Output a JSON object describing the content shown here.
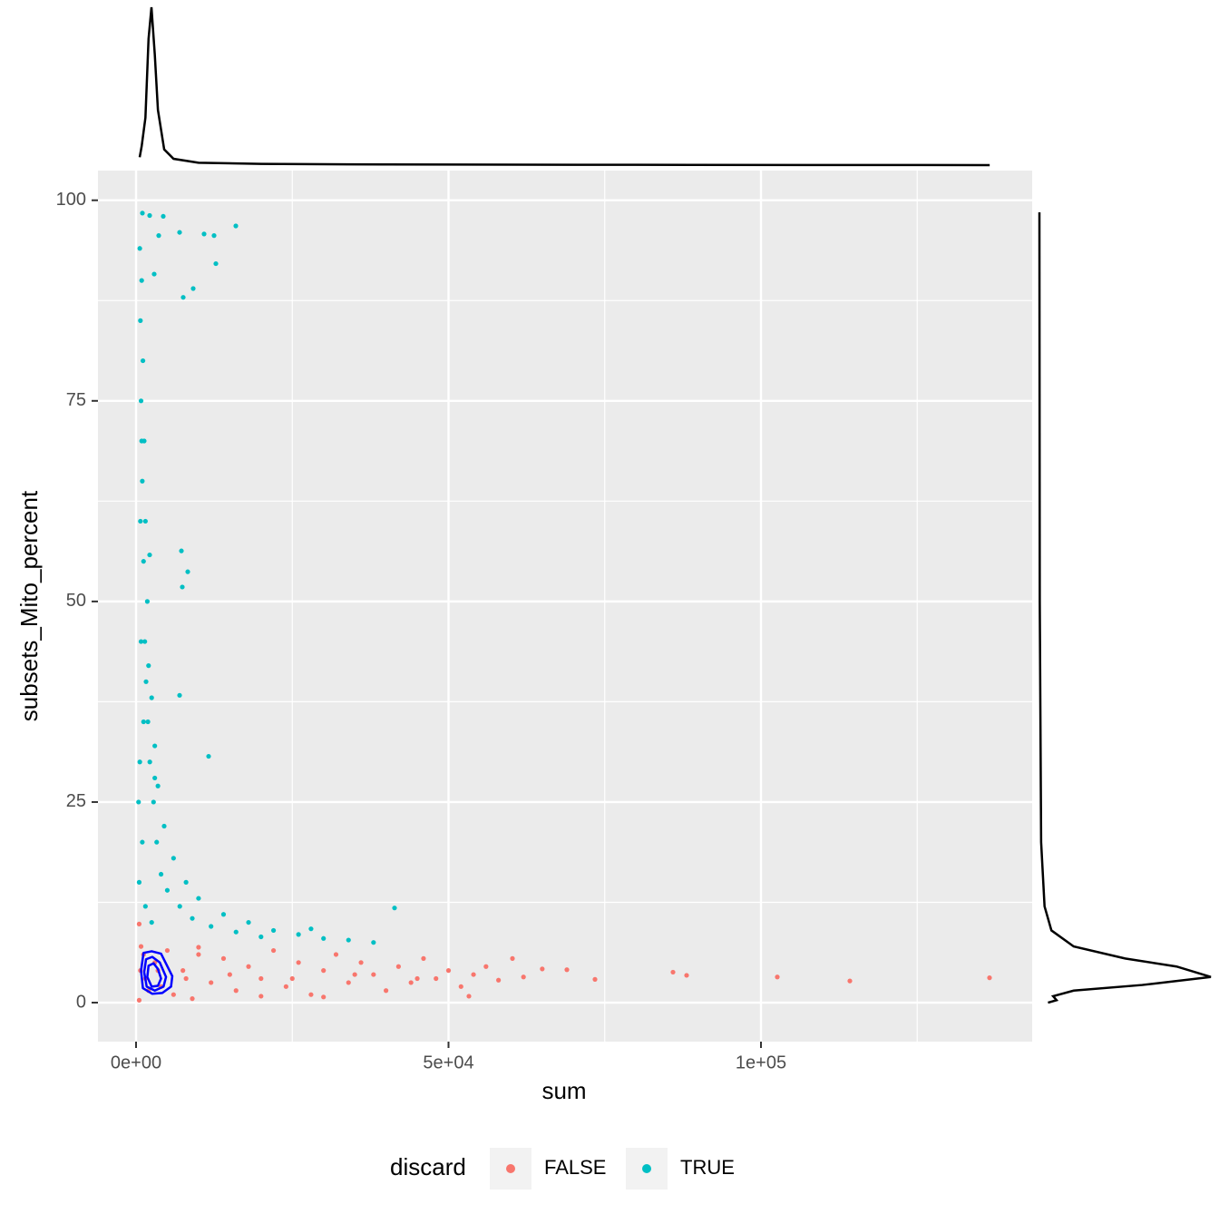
{
  "chart_data": {
    "type": "scatter",
    "x_label": "sum",
    "y_label": "subsets_Mito_percent",
    "legend_title": "discard",
    "legend_position": "bottom",
    "xlim": [
      -6096,
      143396
    ],
    "ylim": [
      -4.86,
      103.7
    ],
    "xticks": [
      {
        "value": 0,
        "label": "0e+00"
      },
      {
        "value": 50000,
        "label": "5e+04"
      },
      {
        "value": 100000,
        "label": "1e+05"
      }
    ],
    "x_minor_ticks": [
      25000,
      75000,
      125000
    ],
    "yticks": [
      0,
      25,
      50,
      75,
      100
    ],
    "y_minor_ticks": [
      12.5,
      37.5,
      62.5,
      87.5
    ],
    "grid": true,
    "series": [
      {
        "name": "FALSE",
        "color": "#F8766D",
        "x": [
          500,
          800,
          1200,
          2000,
          3000,
          4000,
          5000,
          6000,
          7500,
          9000,
          10000,
          12000,
          14000,
          16000,
          18000,
          20000,
          22000,
          24000,
          26000,
          28000,
          30000,
          32000,
          34000,
          36000,
          38000,
          40000,
          42000,
          44000,
          46000,
          48000,
          50000,
          52000,
          54000,
          56000,
          58000,
          60232,
          62000,
          65000,
          68940,
          73440,
          85922,
          88099,
          102612,
          114224,
          136575,
          53266,
          1500,
          3500,
          8000,
          15000,
          25000,
          35000,
          45000,
          20000,
          30000,
          10000,
          500,
          700
        ],
        "y": [
          9.8,
          7,
          6,
          1.5,
          5,
          2,
          6.5,
          1,
          4,
          0.5,
          6,
          2.5,
          5.5,
          1.5,
          4.5,
          3,
          6.5,
          2,
          5,
          1,
          4,
          6,
          2.5,
          5,
          3.5,
          1.5,
          4.5,
          2.5,
          5.5,
          3,
          4,
          2,
          3.5,
          4.5,
          2.8,
          5.5,
          3.2,
          4.2,
          4.1,
          2.9,
          3.8,
          3.4,
          3.2,
          2.7,
          3.1,
          0.8,
          3,
          4,
          3,
          3.5,
          3,
          3.5,
          3,
          0.8,
          0.7,
          6.9,
          0.3,
          4
        ]
      },
      {
        "name": "TRUE",
        "color": "#00BFC4",
        "x": [
          1016,
          2177,
          4354,
          3628,
          6967,
          10885,
          12482,
          15965,
          12773,
          2903,
          9144,
          7547,
          7257,
          8273,
          7402,
          6967,
          11611,
          41364,
          2177,
          600,
          900,
          700,
          1100,
          800,
          1300,
          1000,
          1500,
          1200,
          1800,
          1400,
          2000,
          1600,
          2500,
          1900,
          3000,
          2200,
          3500,
          2800,
          4500,
          3300,
          6000,
          4000,
          8000,
          5000,
          10000,
          7000,
          14000,
          9000,
          18000,
          12000,
          22000,
          16000,
          26000,
          20000,
          30000,
          34000,
          38000,
          28000,
          3000,
          1000,
          500,
          1500,
          2500,
          600,
          800,
          700,
          900,
          1200,
          400
        ],
        "y": [
          98.4,
          98.1,
          98,
          95.6,
          96,
          95.8,
          95.6,
          96.8,
          92.1,
          90.8,
          89,
          87.9,
          56.3,
          53.7,
          51.8,
          38.3,
          30.7,
          11.8,
          55.8,
          94,
          90,
          85,
          80,
          75,
          70,
          65,
          60,
          55,
          50,
          45,
          42,
          40,
          38,
          35,
          32,
          30,
          27,
          25,
          22,
          20,
          18,
          16,
          15,
          14,
          13,
          12,
          11,
          10.5,
          10,
          9.5,
          9,
          8.8,
          8.5,
          8.2,
          8,
          7.8,
          7.5,
          9.2,
          28,
          20,
          15,
          12,
          10,
          30,
          45,
          60,
          70,
          35,
          25
        ]
      }
    ],
    "contour": {
      "color": "#0000FF",
      "levels": [
        {
          "x": [
            1200,
            2500,
            4000,
            5800,
            5600,
            4200,
            2600,
            1100,
            800
          ],
          "y": [
            6.2,
            6.4,
            6.1,
            3.3,
            2.0,
            1.2,
            1.1,
            1.8,
            4.0
          ]
        },
        {
          "x": [
            1600,
            2600,
            3800,
            4800,
            4400,
            3000,
            1700,
            1300
          ],
          "y": [
            5.4,
            5.7,
            5.0,
            3.2,
            2.0,
            1.5,
            2.0,
            3.8
          ]
        },
        {
          "x": [
            2000,
            2800,
            3500,
            4000,
            3500,
            2500,
            1800
          ],
          "y": [
            4.6,
            4.9,
            4.2,
            3.0,
            2.1,
            2.0,
            3.2
          ]
        }
      ]
    },
    "x_density": {
      "x": [
        580,
        900,
        1500,
        2000,
        2467,
        3000,
        3500,
        4500,
        6000,
        10000,
        20000,
        40000,
        80000,
        136600
      ],
      "density": [
        0.05,
        0.12,
        0.3,
        0.8,
        1.0,
        0.7,
        0.35,
        0.1,
        0.04,
        0.015,
        0.008,
        0.004,
        0.002,
        0
      ]
    },
    "y_density": {
      "y": [
        98.5,
        50,
        20,
        12,
        9,
        7,
        5.5,
        4.5,
        3.2,
        2.2,
        1.5,
        0.8,
        0.3,
        0
      ],
      "density": [
        0,
        0.002,
        0.01,
        0.03,
        0.07,
        0.2,
        0.5,
        0.8,
        1.0,
        0.6,
        0.2,
        0.08,
        0.1,
        0.05
      ]
    }
  }
}
